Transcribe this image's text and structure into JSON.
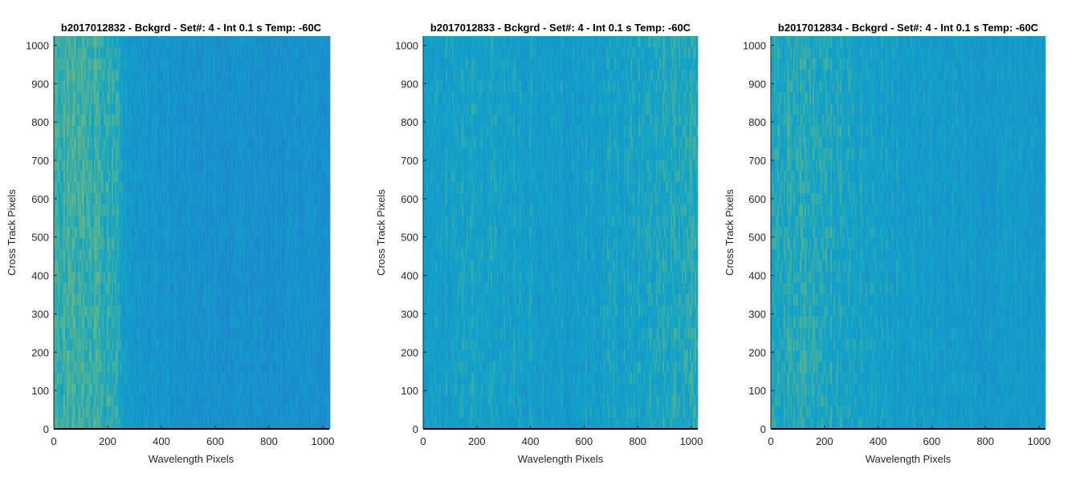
{
  "colors": {
    "low": "#1f7fd0",
    "mid": "#12a3c8",
    "high": "#a9c74a",
    "axis": "#262626",
    "baseline": "#000000"
  },
  "chart_data": [
    {
      "type": "heatmap",
      "title": "b2017012832 - Bckgrd - Set#: 4 - Int 0.1 s Temp: -60C",
      "xlabel": "Wavelength Pixels",
      "ylabel": "Cross Track Pixels",
      "xlim": [
        0,
        1024
      ],
      "ylim": [
        0,
        1024
      ],
      "xticks": [
        0,
        200,
        400,
        600,
        800,
        1000
      ],
      "yticks": [
        0,
        100,
        200,
        300,
        400,
        500,
        600,
        700,
        800,
        900,
        1000
      ],
      "column_profile": [
        {
          "x": 0,
          "level": 0.62
        },
        {
          "x": 130,
          "level": 0.64
        },
        {
          "x": 240,
          "level": 0.56
        },
        {
          "x": 270,
          "level": 0.36
        },
        {
          "x": 400,
          "level": 0.3
        },
        {
          "x": 550,
          "level": 0.26
        },
        {
          "x": 800,
          "level": 0.25
        },
        {
          "x": 1024,
          "level": 0.26
        }
      ]
    },
    {
      "type": "heatmap",
      "title": "b2017012833 - Bckgrd - Set#: 4 - Int 0.1 s Temp: -60C",
      "xlabel": "Wavelength Pixels",
      "ylabel": "Cross Track Pixels",
      "xlim": [
        0,
        1024
      ],
      "ylim": [
        0,
        1024
      ],
      "xticks": [
        0,
        200,
        400,
        600,
        800,
        1000
      ],
      "yticks": [
        0,
        100,
        200,
        300,
        400,
        500,
        600,
        700,
        800,
        900,
        1000
      ],
      "column_profile": [
        {
          "x": 0,
          "level": 0.45
        },
        {
          "x": 200,
          "level": 0.48
        },
        {
          "x": 400,
          "level": 0.44
        },
        {
          "x": 550,
          "level": 0.4
        },
        {
          "x": 750,
          "level": 0.47
        },
        {
          "x": 950,
          "level": 0.55
        },
        {
          "x": 1024,
          "level": 0.57
        }
      ]
    },
    {
      "type": "heatmap",
      "title": "b2017012834 - Bckgrd - Set#: 4 - Int 0.1 s Temp: -60C",
      "xlabel": "Wavelength Pixels",
      "ylabel": "Cross Track Pixels",
      "xlim": [
        0,
        1024
      ],
      "ylim": [
        0,
        1024
      ],
      "xticks": [
        0,
        200,
        400,
        600,
        800,
        1000
      ],
      "yticks": [
        0,
        100,
        200,
        300,
        400,
        500,
        600,
        700,
        800,
        900,
        1000
      ],
      "column_profile": [
        {
          "x": 0,
          "level": 0.52
        },
        {
          "x": 150,
          "level": 0.58
        },
        {
          "x": 300,
          "level": 0.5
        },
        {
          "x": 450,
          "level": 0.42
        },
        {
          "x": 700,
          "level": 0.38
        },
        {
          "x": 900,
          "level": 0.37
        },
        {
          "x": 1024,
          "level": 0.38
        }
      ]
    }
  ]
}
